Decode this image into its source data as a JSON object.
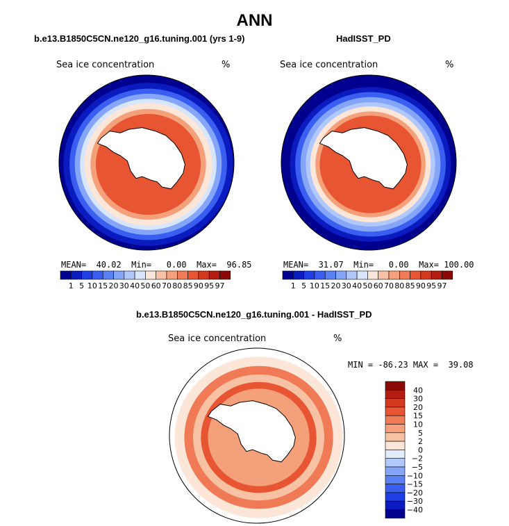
{
  "title": "ANN",
  "colors": {
    "ocean_dark": "#00008e",
    "ice_ramp": [
      "#00008e",
      "#0a1cc0",
      "#1e3fe6",
      "#3a5ff0",
      "#5b82f5",
      "#85a6f8",
      "#b0c8fa",
      "#d8e6fb",
      "#fce6d8",
      "#f7c2a4",
      "#f4a07a",
      "#f07a55",
      "#e85532",
      "#d63a1e",
      "#b41e10",
      "#8a0a06"
    ],
    "diff_ramp": [
      "#00008e",
      "#0a1cc0",
      "#1e3fe6",
      "#3a5ff0",
      "#5b82f5",
      "#85a6f8",
      "#b0c8fa",
      "#e3ecfa",
      "#fce6d8",
      "#f7c2a4",
      "#f4a07a",
      "#f07a55",
      "#e85532",
      "#d63a1e",
      "#b41e10",
      "#8a0a06"
    ]
  },
  "panels": {
    "model": {
      "case_title": "b.e13.B1850C5CN.ne120_g16.tuning.001 (yrs 1-9)",
      "var_label": "Sea ice concentration",
      "unit_label": "%",
      "stats_text": "MEAN=  40.02  Min=   0.00  Max=  96.85"
    },
    "obs": {
      "case_title": "HadISST_PD",
      "var_label": "Sea ice concentration",
      "unit_label": "%",
      "stats_text": "MEAN=  31.07  Min=   0.00  Max= 100.00"
    },
    "diff": {
      "case_title": "b.e13.B1850C5CN.ne120_g16.tuning.001 - HadISST_PD",
      "var_label": "Sea ice concentration",
      "unit_label": "%",
      "stats_text": "MIN = -86.23 MAX =  39.08"
    }
  },
  "chart_data": [
    {
      "type": "heatmap",
      "title": "b.e13.B1850C5CN.ne120_g16.tuning.001 (yrs 1-9)",
      "variable": "Sea ice concentration",
      "units": "%",
      "projection": "south polar stereographic",
      "colorbar_levels": [
        "1",
        "5",
        "10",
        "15",
        "20",
        "30",
        "40",
        "50",
        "60",
        "70",
        "80",
        "85",
        "90",
        "95",
        "97"
      ],
      "mean": 40.02,
      "min": 0.0,
      "max": 96.85
    },
    {
      "type": "heatmap",
      "title": "HadISST_PD",
      "variable": "Sea ice concentration",
      "units": "%",
      "projection": "south polar stereographic",
      "colorbar_levels": [
        "1",
        "5",
        "10",
        "15",
        "20",
        "30",
        "40",
        "50",
        "60",
        "70",
        "80",
        "85",
        "90",
        "95",
        "97"
      ],
      "mean": 31.07,
      "min": 0.0,
      "max": 100.0
    },
    {
      "type": "heatmap",
      "title": "b.e13.B1850C5CN.ne120_g16.tuning.001 - HadISST_PD",
      "variable": "Sea ice concentration",
      "units": "%",
      "projection": "south polar stereographic",
      "colorbar_levels": [
        "40",
        "30",
        "20",
        "15",
        "10",
        "5",
        "2",
        "0",
        "−2",
        "−5",
        "−10",
        "−15",
        "−20",
        "−30",
        "−40"
      ],
      "min": -86.23,
      "max": 39.08
    }
  ]
}
